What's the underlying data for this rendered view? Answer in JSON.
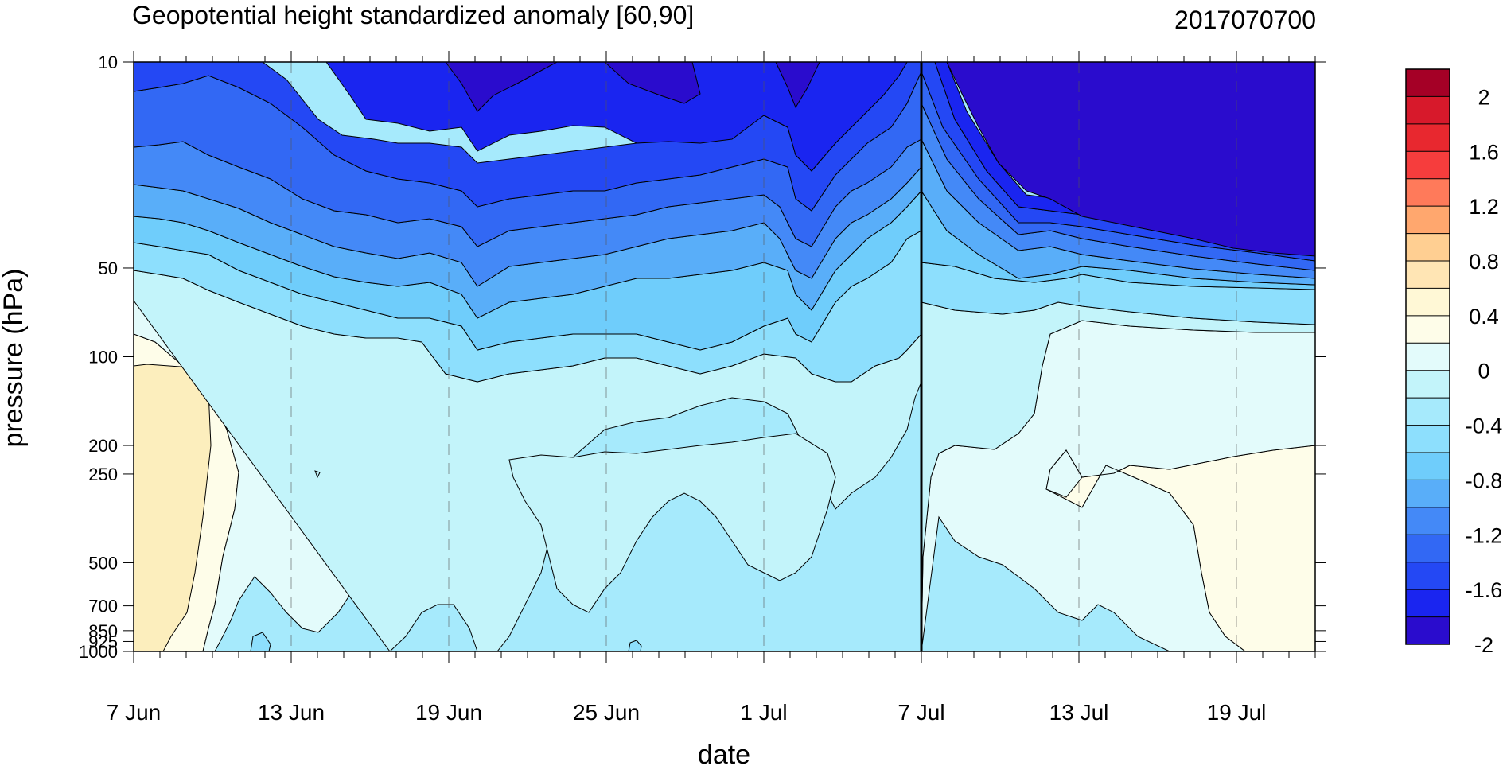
{
  "chart_data": {
    "type": "contour",
    "title": "Geopotential height standardized anomaly [60,90]",
    "date_label": "2017070700",
    "xlabel": "date",
    "ylabel": "pressure (hPa)",
    "x_ticks": [
      "7 Jun",
      "13 Jun",
      "19 Jun",
      "25 Jun",
      "1 Jul",
      "7 Jul",
      "13 Jul",
      "19 Jul"
    ],
    "x_range": [
      "7 Jun",
      "22 Jul"
    ],
    "y_ticks": [
      "10",
      "50",
      "100",
      "200",
      "250",
      "500",
      "700",
      "850",
      "925",
      "1000"
    ],
    "y_range": [
      1000,
      10
    ],
    "y_scale": "log",
    "current_date_marker": "7 Jul",
    "contour_levels": [
      -2.2,
      -2,
      -1.8,
      -1.6,
      -1.4,
      -1.2,
      -1,
      -0.8,
      -0.6,
      -0.4,
      -0.2,
      0,
      0.2,
      0.4,
      0.6,
      0.8,
      1,
      1.2,
      1.4,
      1.6,
      1.8,
      2,
      2.2
    ],
    "colorbar_labels": [
      "2",
      "1.6",
      "1.2",
      "0.8",
      "0.4",
      "0",
      "-0.4",
      "-0.8",
      "-1.2",
      "-1.6",
      "-2"
    ],
    "colorbar_colors_top_to_bottom": [
      "#a50026",
      "#d7192b",
      "#e8282f",
      "#f63d3d",
      "#ff7a5a",
      "#ffa76e",
      "#ffcf92",
      "#ffe5b4",
      "#fff8d6",
      "#fefde9",
      "#e3fbfb",
      "#c3f4fa",
      "#a6eafc",
      "#8ddffd",
      "#6fcdfb",
      "#59aef9",
      "#4489f7",
      "#3268f4",
      "#2448f4",
      "#1a25f0",
      "#2a0ccd"
    ],
    "regions": [
      {
        "level": "0.4 to 0.6",
        "color": "#fceebd",
        "where": "near surface to 200 hPa, 7 Jun to 10 Jun"
      },
      {
        "level": "0 to 0.2",
        "color": "#fefde9",
        "where": "250 hPa to surface, 12 Jul to 22 Jul"
      },
      {
        "level": "-0.2 to 0",
        "color": "#e3fbfb",
        "where": "mid troposphere, 8 Jun to 18 Jun and after 7 Jul"
      },
      {
        "level": "-2.2 and below",
        "color": "#2a0ccd",
        "where": "10 to 50 hPa, after 9 Jul"
      }
    ]
  }
}
